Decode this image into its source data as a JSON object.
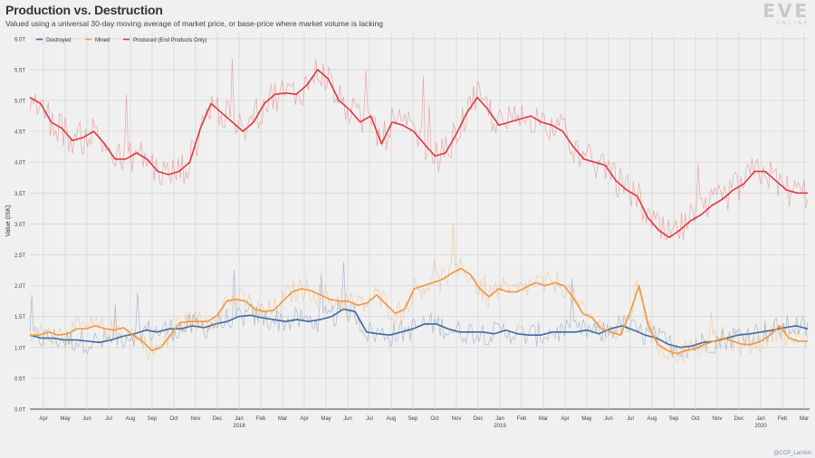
{
  "header": {
    "title": "Production vs. Destruction",
    "subtitle": "Valued using a universal 30-day moving average of market price, or base-price where market volume is lacking"
  },
  "logo": {
    "main": "EVE",
    "sub": "ONLINE"
  },
  "credit": "@CCP_Larrikin",
  "colors": {
    "destroyed": "#3e6a9e",
    "mined": "#f3963a",
    "produced": "#df3a3f",
    "grid": "#d6d6d6",
    "baseline": "#666666"
  },
  "chart_data": {
    "type": "line",
    "title": "Production vs. Destruction",
    "ylabel": "Value (ISK)",
    "xlabel": "",
    "ylim": [
      0,
      6.1
    ],
    "y_ticks": [
      {
        "value": 0,
        "label": "0.0T"
      },
      {
        "value": 0.5,
        "label": "0.5T"
      },
      {
        "value": 1.0,
        "label": "1.0T"
      },
      {
        "value": 1.5,
        "label": "1.5T"
      },
      {
        "value": 2.0,
        "label": "2.0T"
      },
      {
        "value": 2.5,
        "label": "2.5T"
      },
      {
        "value": 3.0,
        "label": "3.0T"
      },
      {
        "value": 3.5,
        "label": "3.5T"
      },
      {
        "value": 4.0,
        "label": "4.0T"
      },
      {
        "value": 4.5,
        "label": "4.5T"
      },
      {
        "value": 5.0,
        "label": "5.0T"
      },
      {
        "value": 5.5,
        "label": "5.5T"
      },
      {
        "value": 6.0,
        "label": "6.0T"
      }
    ],
    "x_ticks": [
      {
        "label": "Apr",
        "year": ""
      },
      {
        "label": "May",
        "year": ""
      },
      {
        "label": "Jun",
        "year": ""
      },
      {
        "label": "Jul",
        "year": ""
      },
      {
        "label": "Aug",
        "year": ""
      },
      {
        "label": "Sep",
        "year": ""
      },
      {
        "label": "Oct",
        "year": ""
      },
      {
        "label": "Nov",
        "year": ""
      },
      {
        "label": "Dec",
        "year": ""
      },
      {
        "label": "Jan",
        "year": "2018"
      },
      {
        "label": "Feb",
        "year": ""
      },
      {
        "label": "Mar",
        "year": ""
      },
      {
        "label": "Apr",
        "year": ""
      },
      {
        "label": "May",
        "year": ""
      },
      {
        "label": "Jun",
        "year": ""
      },
      {
        "label": "Jul",
        "year": ""
      },
      {
        "label": "Aug",
        "year": ""
      },
      {
        "label": "Sep",
        "year": ""
      },
      {
        "label": "Oct",
        "year": ""
      },
      {
        "label": "Nov",
        "year": ""
      },
      {
        "label": "Dec",
        "year": ""
      },
      {
        "label": "Jan",
        "year": "2019"
      },
      {
        "label": "Feb",
        "year": ""
      },
      {
        "label": "Mar",
        "year": ""
      },
      {
        "label": "Apr",
        "year": ""
      },
      {
        "label": "May",
        "year": ""
      },
      {
        "label": "Jun",
        "year": ""
      },
      {
        "label": "Jul",
        "year": ""
      },
      {
        "label": "Aug",
        "year": ""
      },
      {
        "label": "Sep",
        "year": ""
      },
      {
        "label": "Oct",
        "year": ""
      },
      {
        "label": "Nov",
        "year": ""
      },
      {
        "label": "Dec",
        "year": ""
      },
      {
        "label": "Jan",
        "year": "2020"
      },
      {
        "label": "Feb",
        "year": ""
      },
      {
        "label": "Mar",
        "year": ""
      }
    ],
    "grid": true,
    "legend_position": "top-left",
    "series": [
      {
        "name": "Destroyed",
        "color_key": "destroyed",
        "values": [
          1.2,
          1.15,
          1.15,
          1.12,
          1.12,
          1.1,
          1.08,
          1.12,
          1.18,
          1.22,
          1.28,
          1.25,
          1.3,
          1.3,
          1.35,
          1.32,
          1.38,
          1.42,
          1.5,
          1.52,
          1.48,
          1.45,
          1.42,
          1.45,
          1.42,
          1.45,
          1.5,
          1.62,
          1.58,
          1.25,
          1.22,
          1.2,
          1.25,
          1.3,
          1.38,
          1.38,
          1.3,
          1.25,
          1.25,
          1.25,
          1.22,
          1.28,
          1.22,
          1.2,
          1.2,
          1.25,
          1.25,
          1.25,
          1.28,
          1.22,
          1.3,
          1.35,
          1.28,
          1.2,
          1.15,
          1.05,
          1.0,
          1.02,
          1.08,
          1.1,
          1.15,
          1.2,
          1.22,
          1.25,
          1.28,
          1.32,
          1.35,
          1.3
        ]
      },
      {
        "name": "Mined",
        "color_key": "mined",
        "values": [
          1.2,
          1.2,
          1.25,
          1.2,
          1.22,
          1.3,
          1.3,
          1.35,
          1.3,
          1.28,
          1.32,
          1.2,
          1.1,
          0.95,
          1.0,
          1.2,
          1.4,
          1.42,
          1.42,
          1.42,
          1.52,
          1.75,
          1.78,
          1.75,
          1.62,
          1.58,
          1.6,
          1.75,
          1.9,
          1.95,
          1.92,
          1.85,
          1.78,
          1.75,
          1.75,
          1.68,
          1.72,
          1.85,
          1.7,
          1.55,
          1.62,
          1.95,
          2.0,
          2.05,
          2.1,
          2.2,
          2.28,
          2.18,
          1.95,
          1.82,
          1.95,
          1.9,
          1.9,
          1.98,
          2.05,
          2.0,
          2.05,
          2.0,
          1.8,
          1.55,
          1.48,
          1.3,
          1.25,
          1.2,
          1.55,
          2.0,
          1.35,
          1.05,
          0.95,
          0.9,
          0.95,
          0.98,
          1.05,
          1.1,
          1.15,
          1.1,
          1.05,
          1.05,
          1.1,
          1.2,
          1.35,
          1.15,
          1.1,
          1.1
        ]
      },
      {
        "name": "Produced (End Products Only)",
        "color_key": "produced",
        "values": [
          5.05,
          4.95,
          4.65,
          4.55,
          4.35,
          4.4,
          4.5,
          4.3,
          4.05,
          4.05,
          4.15,
          4.05,
          3.85,
          3.8,
          3.85,
          4.0,
          4.55,
          4.95,
          4.8,
          4.65,
          4.5,
          4.65,
          4.95,
          5.1,
          5.12,
          5.1,
          5.25,
          5.5,
          5.35,
          5.0,
          4.85,
          4.65,
          4.75,
          4.3,
          4.65,
          4.6,
          4.5,
          4.3,
          4.1,
          4.15,
          4.45,
          4.8,
          5.05,
          4.85,
          4.6,
          4.65,
          4.7,
          4.75,
          4.65,
          4.6,
          4.5,
          4.25,
          4.05,
          4.0,
          3.95,
          3.7,
          3.55,
          3.45,
          3.1,
          2.9,
          2.78,
          2.9,
          3.05,
          3.15,
          3.3,
          3.4,
          3.55,
          3.65,
          3.85,
          3.85,
          3.7,
          3.55,
          3.5,
          3.5
        ]
      }
    ]
  }
}
